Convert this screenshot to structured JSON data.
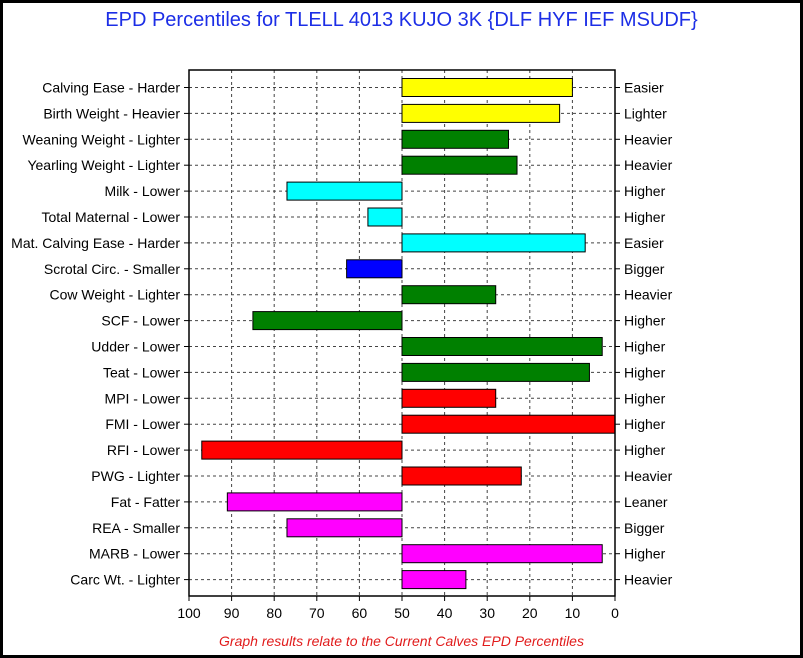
{
  "title": "EPD Percentiles for TLELL 4013 KUJO 3K {DLF HYF IEF MSUDF}",
  "footnote": "Graph results relate to the Current Calves EPD Percentiles",
  "chart_data": {
    "type": "bar",
    "orientation": "horizontal-diverging",
    "baseline": 50,
    "xlim": [
      100,
      0
    ],
    "x_ticks": [
      100,
      90,
      80,
      70,
      60,
      50,
      40,
      30,
      20,
      10,
      0
    ],
    "grid": true,
    "rows": [
      {
        "left": "Calving Ease - Harder",
        "right": "Easier",
        "value": 10,
        "color": "#ffff00"
      },
      {
        "left": "Birth Weight - Heavier",
        "right": "Lighter",
        "value": 13,
        "color": "#ffff00"
      },
      {
        "left": "Weaning Weight - Lighter",
        "right": "Heavier",
        "value": 25,
        "color": "#008000"
      },
      {
        "left": "Yearling Weight - Lighter",
        "right": "Heavier",
        "value": 23,
        "color": "#008000"
      },
      {
        "left": "Milk - Lower",
        "right": "Higher",
        "value": 77,
        "color": "#00ffff"
      },
      {
        "left": "Total Maternal - Lower",
        "right": "Higher",
        "value": 58,
        "color": "#00ffff"
      },
      {
        "left": "Mat. Calving Ease - Harder",
        "right": "Easier",
        "value": 7,
        "color": "#00ffff"
      },
      {
        "left": "Scrotal Circ. - Smaller",
        "right": "Bigger",
        "value": 63,
        "color": "#0000ff"
      },
      {
        "left": "Cow Weight - Lighter",
        "right": "Heavier",
        "value": 28,
        "color": "#008000"
      },
      {
        "left": "SCF - Lower",
        "right": "Higher",
        "value": 85,
        "color": "#008000"
      },
      {
        "left": "Udder - Lower",
        "right": "Higher",
        "value": 3,
        "color": "#008000"
      },
      {
        "left": "Teat - Lower",
        "right": "Higher",
        "value": 6,
        "color": "#008000"
      },
      {
        "left": "MPI - Lower",
        "right": "Higher",
        "value": 28,
        "color": "#ff0000"
      },
      {
        "left": "FMI - Lower",
        "right": "Higher",
        "value": 0,
        "color": "#ff0000"
      },
      {
        "left": "RFI - Lower",
        "right": "Higher",
        "value": 97,
        "color": "#ff0000"
      },
      {
        "left": "PWG - Lighter",
        "right": "Heavier",
        "value": 22,
        "color": "#ff0000"
      },
      {
        "left": "Fat - Fatter",
        "right": "Leaner",
        "value": 91,
        "color": "#ff00ff"
      },
      {
        "left": "REA - Smaller",
        "right": "Bigger",
        "value": 77,
        "color": "#ff00ff"
      },
      {
        "left": "MARB - Lower",
        "right": "Higher",
        "value": 3,
        "color": "#ff00ff"
      },
      {
        "left": "Carc Wt. - Lighter",
        "right": "Heavier",
        "value": 35,
        "color": "#ff00ff"
      }
    ]
  }
}
